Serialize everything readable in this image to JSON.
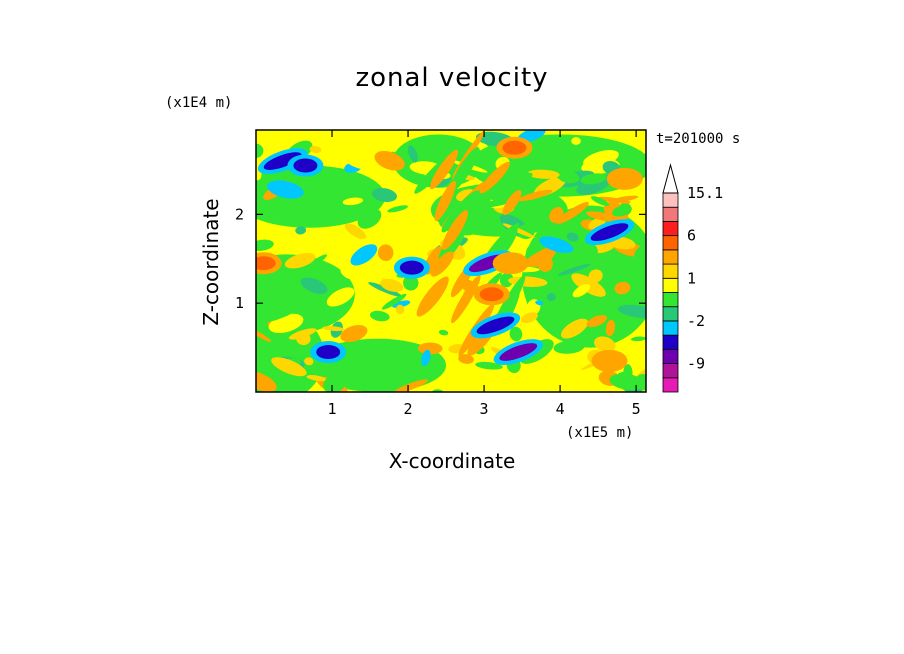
{
  "chart_data": {
    "type": "heatmap",
    "title": "zonal velocity",
    "xlabel": "X-coordinate",
    "ylabel": "Z-coordinate",
    "x_unit": "(x1E5 m)",
    "y_unit": "(x1E4 m)",
    "time_label": "t=201000 s",
    "x_ticks": [
      "1",
      "2",
      "3",
      "4",
      "5"
    ],
    "x_tick_values": [
      1,
      2,
      3,
      4,
      5
    ],
    "y_ticks": [
      "1",
      "2"
    ],
    "y_tick_values": [
      1,
      2
    ],
    "xlim": [
      0,
      5.13
    ],
    "ylim": [
      0,
      2.95
    ],
    "colorbar": {
      "labels": [
        {
          "text": "15.1",
          "value": 15.1
        },
        {
          "text": "6",
          "value": 6
        },
        {
          "text": "1",
          "value": 1
        },
        {
          "text": "-2",
          "value": -2
        },
        {
          "text": "-9",
          "value": -9
        }
      ],
      "bands": [
        {
          "from": -15,
          "to": -12,
          "color": "#e61ab4"
        },
        {
          "from": -12,
          "to": -9,
          "color": "#b0129a"
        },
        {
          "from": -9,
          "to": -6,
          "color": "#6e00b0"
        },
        {
          "from": -6,
          "to": -3,
          "color": "#1e00c8"
        },
        {
          "from": -3,
          "to": -2,
          "color": "#00c8ff"
        },
        {
          "from": -2,
          "to": -1,
          "color": "#28c878"
        },
        {
          "from": -1,
          "to": 0,
          "color": "#32e632"
        },
        {
          "from": 0,
          "to": 1,
          "color": "#ffff00"
        },
        {
          "from": 1,
          "to": 2,
          "color": "#ffd700"
        },
        {
          "from": 2,
          "to": 3,
          "color": "#ffa500"
        },
        {
          "from": 3,
          "to": 6,
          "color": "#ff6400"
        },
        {
          "from": 6,
          "to": 9,
          "color": "#ff1e1e"
        },
        {
          "from": 9,
          "to": 12,
          "color": "#f07878"
        },
        {
          "from": 12,
          "to": 15.1,
          "color": "#ffc0c0"
        }
      ]
    },
    "field_features": [
      {
        "x": 3.05,
        "z": 1.45,
        "value": -7
      },
      {
        "x": 4.65,
        "z": 1.8,
        "value": -6
      },
      {
        "x": 0.35,
        "z": 2.6,
        "value": -6
      },
      {
        "x": 3.15,
        "z": 0.75,
        "value": -6
      },
      {
        "x": 3.45,
        "z": 0.45,
        "value": -7
      },
      {
        "x": 2.05,
        "z": 1.4,
        "value": -5
      },
      {
        "x": 0.65,
        "z": 2.55,
        "value": -4
      },
      {
        "x": 0.95,
        "z": 0.45,
        "value": -5
      },
      {
        "x": 3.1,
        "z": 1.1,
        "value": 3
      },
      {
        "x": 3.35,
        "z": 1.45,
        "value": 2
      },
      {
        "x": 4.85,
        "z": 2.4,
        "value": 2
      },
      {
        "x": 4.65,
        "z": 0.35,
        "value": 2
      },
      {
        "x": 0.1,
        "z": 1.45,
        "value": 3
      },
      {
        "x": 3.4,
        "z": 2.75,
        "value": 3
      }
    ]
  }
}
